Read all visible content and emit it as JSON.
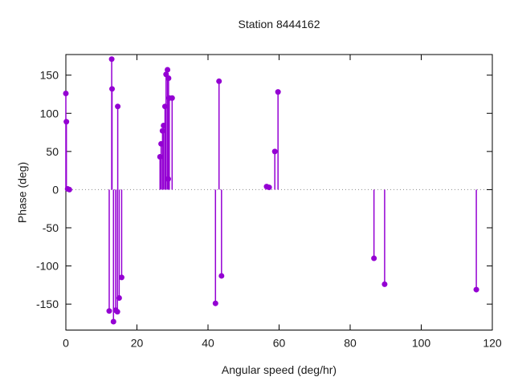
{
  "title": "Station 8444162",
  "chart_data": {
    "type": "scatter",
    "style": "impulses+points (stem plot)",
    "title": "Station 8444162",
    "xlabel": "Angular speed (deg/hr)",
    "ylabel": "Phase (deg)",
    "xlim": [
      0,
      120
    ],
    "ylim": [
      -184,
      177
    ],
    "xticks": [
      0,
      20,
      40,
      60,
      80,
      100,
      120
    ],
    "yticks": [
      -150,
      -100,
      -50,
      0,
      50,
      100,
      150
    ],
    "grid": false,
    "legend": "none",
    "zero_line_dotted": true,
    "point_color": "#9400d3",
    "axis_color": "#000000",
    "text_color": "#1b1b1b",
    "zero_line_color": "#8a8a8a",
    "points": [
      [
        0.0,
        126
      ],
      [
        0.15,
        89
      ],
      [
        0.5,
        1
      ],
      [
        1.0,
        0
      ],
      [
        12.2,
        -159
      ],
      [
        12.9,
        171
      ],
      [
        13.0,
        132
      ],
      [
        13.4,
        -173
      ],
      [
        14.0,
        -158
      ],
      [
        14.5,
        -160
      ],
      [
        14.6,
        109
      ],
      [
        15.0,
        -142
      ],
      [
        15.7,
        -115
      ],
      [
        26.5,
        43
      ],
      [
        26.8,
        60
      ],
      [
        27.2,
        77
      ],
      [
        27.5,
        84
      ],
      [
        27.9,
        109
      ],
      [
        28.2,
        151
      ],
      [
        28.6,
        157
      ],
      [
        28.8,
        14
      ],
      [
        28.9,
        146
      ],
      [
        29.1,
        120
      ],
      [
        29.9,
        120
      ],
      [
        42.1,
        -149
      ],
      [
        43.1,
        142
      ],
      [
        43.8,
        -113
      ],
      [
        56.5,
        4
      ],
      [
        57.2,
        3
      ],
      [
        58.8,
        50
      ],
      [
        59.7,
        128
      ],
      [
        86.7,
        -90
      ],
      [
        89.7,
        -124
      ],
      [
        115.5,
        -131
      ]
    ]
  }
}
